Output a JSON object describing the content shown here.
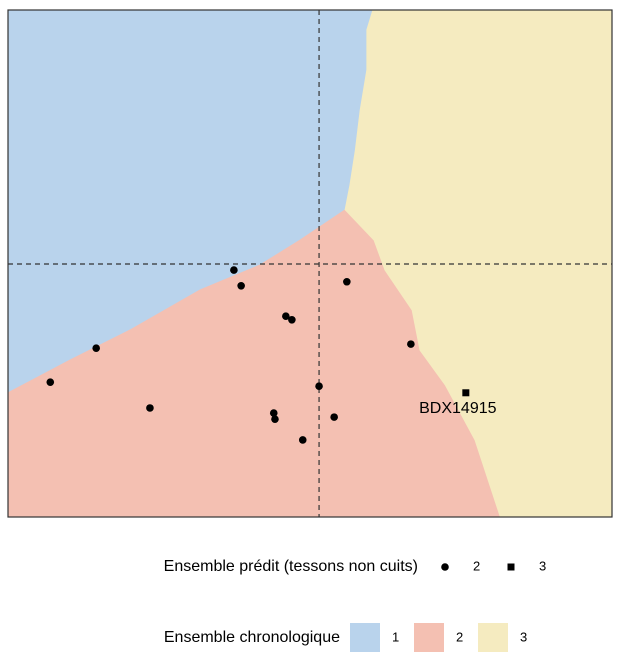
{
  "chart_data": {
    "type": "scatter",
    "xlim": [
      0,
      100
    ],
    "ylim": [
      0,
      100
    ],
    "vlines": [
      51.5
    ],
    "hlines": [
      49.9
    ],
    "regions": [
      {
        "name": "1",
        "color": "#b9d3ec",
        "polygon": [
          [
            0,
            100
          ],
          [
            60.4,
            100
          ],
          [
            59.4,
            96.1
          ],
          [
            59.4,
            88.2
          ],
          [
            58.3,
            80.3
          ],
          [
            57.5,
            72.4
          ],
          [
            56.6,
            65.5
          ],
          [
            55.8,
            60.6
          ],
          [
            53.3,
            58.6
          ],
          [
            48.3,
            54.6
          ],
          [
            41.7,
            49.7
          ],
          [
            31.8,
            44.8
          ],
          [
            20.2,
            36.9
          ],
          [
            10.3,
            31.0
          ],
          [
            0,
            24.5
          ]
        ]
      },
      {
        "name": "2",
        "color": "#f4c0b2",
        "polygon": [
          [
            0,
            24.5
          ],
          [
            10.3,
            31.0
          ],
          [
            20.2,
            36.9
          ],
          [
            31.8,
            44.8
          ],
          [
            41.7,
            49.7
          ],
          [
            48.3,
            54.6
          ],
          [
            53.3,
            58.6
          ],
          [
            55.8,
            60.6
          ],
          [
            60.6,
            54.6
          ],
          [
            62.4,
            48.7
          ],
          [
            66.9,
            40.8
          ],
          [
            68.2,
            32.9
          ],
          [
            72.4,
            26.0
          ],
          [
            77.3,
            15.2
          ],
          [
            81.5,
            0
          ],
          [
            0,
            0
          ]
        ]
      },
      {
        "name": "3",
        "color": "#f5ebc0",
        "polygon": [
          [
            60.4,
            100
          ],
          [
            100,
            100
          ],
          [
            100,
            0
          ],
          [
            81.5,
            0
          ],
          [
            77.3,
            15.2
          ],
          [
            72.4,
            26.0
          ],
          [
            68.2,
            32.9
          ],
          [
            66.9,
            40.8
          ],
          [
            62.4,
            48.7
          ],
          [
            60.6,
            54.6
          ],
          [
            55.8,
            60.6
          ],
          [
            56.6,
            65.5
          ],
          [
            57.5,
            72.4
          ],
          [
            58.3,
            80.3
          ],
          [
            59.4,
            88.2
          ],
          [
            59.4,
            96.1
          ]
        ]
      }
    ],
    "series": [
      {
        "name": "2",
        "shape": "circle",
        "color": "#000000",
        "x": [
          37.4,
          38.6,
          56.1,
          46.0,
          47.0,
          14.6,
          66.7,
          7.0,
          51.5,
          23.5,
          44.0,
          44.2,
          54.0,
          48.8
        ],
        "y": [
          48.7,
          45.6,
          46.4,
          39.6,
          38.9,
          33.3,
          34.1,
          26.6,
          25.8,
          21.5,
          20.5,
          19.3,
          19.7,
          15.2
        ]
      },
      {
        "name": "3",
        "shape": "square",
        "color": "#000000",
        "x": [
          75.8
        ],
        "y": [
          24.5
        ],
        "labels": [
          "BDX14915"
        ]
      }
    ],
    "legend_points_title": "Ensemble prédit (tessons non cuits)",
    "legend_regions_title": "Ensemble chronologique"
  }
}
